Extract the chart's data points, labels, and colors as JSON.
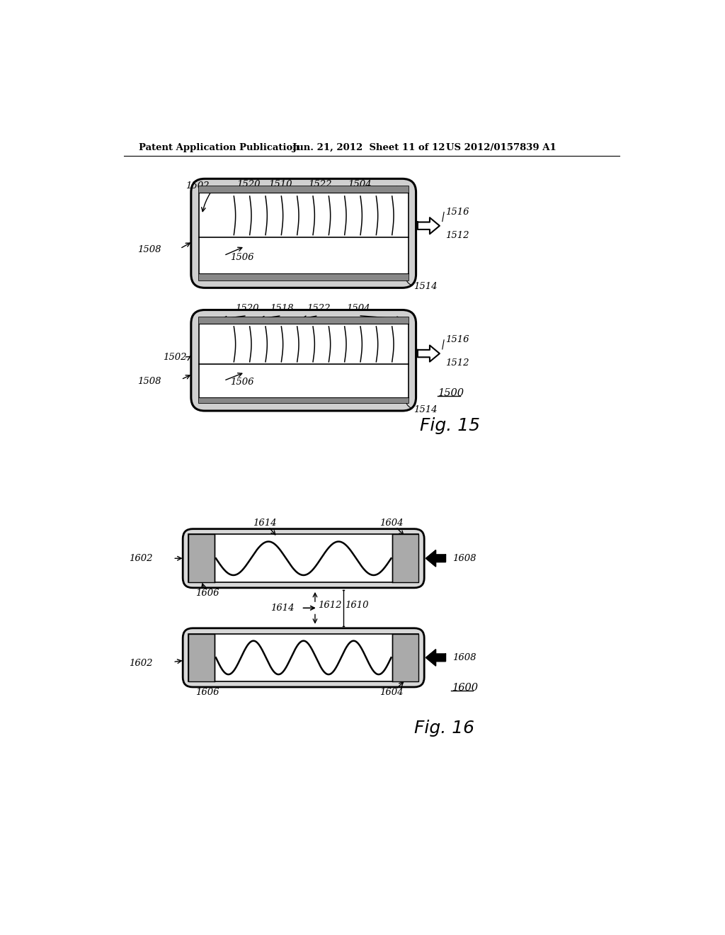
{
  "bg_color": "#ffffff",
  "header_left": "Patent Application Publication",
  "header_mid": "Jun. 21, 2012  Sheet 11 of 12",
  "header_right": "US 2012/0157839 A1",
  "fig15_label": "Fig. 15",
  "fig16_label": "Fig. 16",
  "label_fs": 9.5
}
